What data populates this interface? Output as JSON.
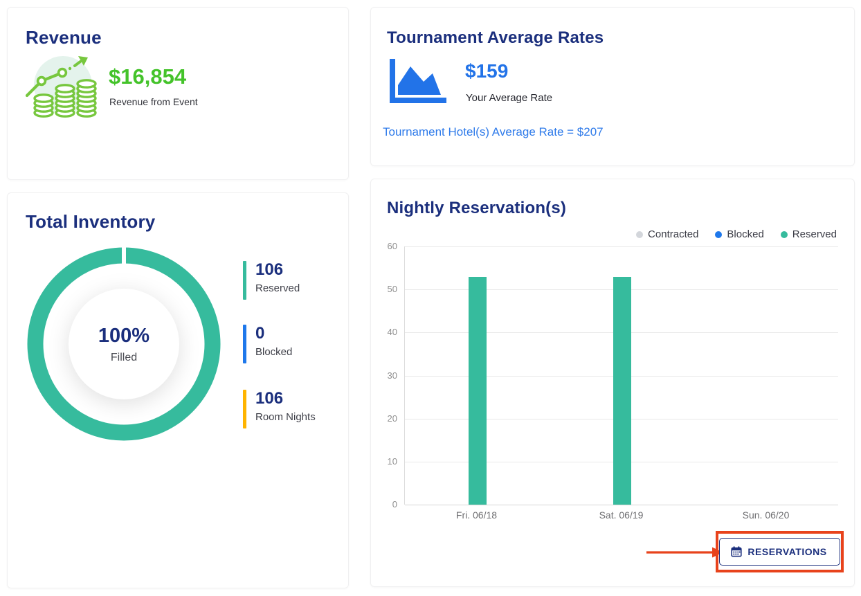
{
  "colors": {
    "navy": "#1B2F7D",
    "green": "#44C32A",
    "icon_green": "#77C73E",
    "mint": "#E4F3EC",
    "blue": "#2273E8",
    "link_blue": "#2F7BEA",
    "teal": "#36BB9D",
    "amber": "#FFB400",
    "gray_dot": "#D3D6DB",
    "red": "#E8431C"
  },
  "revenue_card": {
    "title": "Revenue",
    "icon": "coins-growth-icon",
    "value": "$16,854",
    "caption": "Revenue from Event"
  },
  "rates_card": {
    "title": "Tournament Average Rates",
    "icon": "area-chart-icon",
    "value": "$159",
    "caption": "Your Average Rate",
    "note": "Tournament Hotel(s) Average Rate = $207"
  },
  "inventory_card": {
    "title": "Total Inventory",
    "percent": "100%",
    "percent_caption": "Filled",
    "legend": [
      {
        "value": "106",
        "label": "Reserved",
        "color": "#36BB9D"
      },
      {
        "value": "0",
        "label": "Blocked",
        "color": "#1E78EB"
      },
      {
        "value": "106",
        "label": "Room Nights",
        "color": "#FFB400"
      }
    ]
  },
  "reservations_card": {
    "title": "Nightly Reservation(s)",
    "legend": [
      {
        "label": "Contracted",
        "color": "#D3D6DB"
      },
      {
        "label": "Blocked",
        "color": "#1E78EB"
      },
      {
        "label": "Reserved",
        "color": "#36BB9D"
      }
    ],
    "button": {
      "label": "RESERVATIONS",
      "icon": "calendar-icon"
    }
  },
  "chart_data": [
    {
      "type": "pie",
      "title": "Total Inventory",
      "center_label": "100%",
      "center_sublabel": "Filled",
      "values": [
        {
          "label": "Reserved",
          "value": 106,
          "color": "#36BB9D"
        },
        {
          "label": "Blocked",
          "value": 0,
          "color": "#1E78EB"
        },
        {
          "label": "Room Nights",
          "value": 106,
          "color": "#FFB400"
        }
      ]
    },
    {
      "type": "bar",
      "title": "Nightly Reservation(s)",
      "categories": [
        "Fri. 06/18",
        "Sat. 06/19",
        "Sun. 06/20"
      ],
      "series": [
        {
          "name": "Contracted",
          "color": "#D3D6DB",
          "values": [
            0,
            0,
            0
          ]
        },
        {
          "name": "Blocked",
          "color": "#1E78EB",
          "values": [
            0,
            0,
            0
          ]
        },
        {
          "name": "Reserved",
          "color": "#36BB9D",
          "values": [
            53,
            53,
            0
          ]
        }
      ],
      "ylim": [
        0,
        60
      ],
      "ytick_step": 10,
      "grid": true,
      "legend_position": "top-right"
    }
  ]
}
